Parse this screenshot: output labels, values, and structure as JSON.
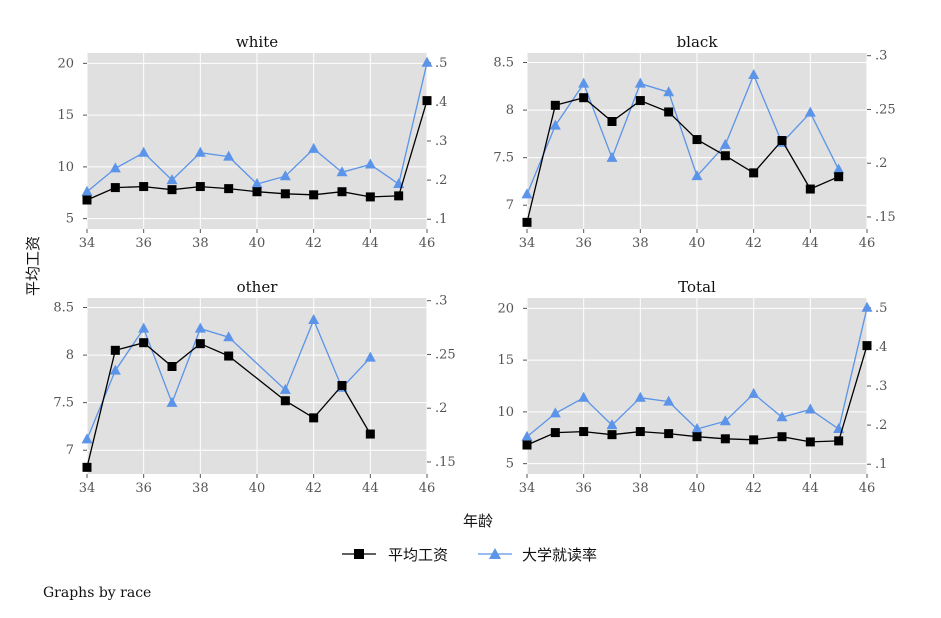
{
  "colors": {
    "wage": "#000000",
    "college": "#5b94e8",
    "plot_bg": "#e0e0e0",
    "grid": "#ffffff"
  },
  "figure": {
    "ylabel": "平均工资",
    "xlabel": "年龄",
    "note": "Graphs by race",
    "legend": [
      {
        "key": "wage",
        "label": "平均工资",
        "marker": "square",
        "color": "#000000"
      },
      {
        "key": "college",
        "label": "大学就读率",
        "marker": "triangle",
        "color": "#5b94e8"
      }
    ]
  },
  "chart_data": [
    {
      "type": "line",
      "title": "white",
      "xlim": [
        34,
        46
      ],
      "xticks": [
        34,
        36,
        38,
        40,
        42,
        44,
        46
      ],
      "ylim_left": [
        4,
        21
      ],
      "yticks_left": [
        5,
        10,
        15,
        20
      ],
      "ytick_labels_left": [
        "5",
        "10",
        "15",
        "20"
      ],
      "ylim_right": [
        0.075,
        0.525
      ],
      "yticks_right": [
        0.1,
        0.2,
        0.3,
        0.4,
        0.5
      ],
      "ytick_labels_right": [
        ".1",
        ".2",
        ".3",
        ".4",
        ".5"
      ],
      "series": [
        {
          "name": "平均工资",
          "axis": "left",
          "x": [
            34,
            35,
            36,
            37,
            38,
            39,
            40,
            41,
            42,
            43,
            44,
            45,
            46
          ],
          "y": [
            6.8,
            8.0,
            8.1,
            7.8,
            8.1,
            7.9,
            7.6,
            7.4,
            7.3,
            7.6,
            7.1,
            7.2,
            16.4
          ]
        },
        {
          "name": "大学就读率",
          "axis": "right",
          "x": [
            34,
            35,
            36,
            37,
            38,
            39,
            40,
            41,
            42,
            43,
            44,
            45,
            46
          ],
          "y": [
            0.17,
            0.23,
            0.27,
            0.2,
            0.27,
            0.26,
            0.19,
            0.21,
            0.28,
            0.22,
            0.24,
            0.19,
            0.5
          ]
        }
      ]
    },
    {
      "type": "line",
      "title": "black",
      "xlim": [
        34,
        46
      ],
      "xticks": [
        34,
        36,
        38,
        40,
        42,
        44,
        46
      ],
      "ylim_left": [
        6.75,
        8.6
      ],
      "yticks_left": [
        7,
        7.5,
        8,
        8.5
      ],
      "ytick_labels_left": [
        "7",
        "7.5",
        "8",
        "8.5"
      ],
      "ylim_right": [
        0.1388,
        0.3025
      ],
      "yticks_right": [
        0.15,
        0.2,
        0.25,
        0.3
      ],
      "ytick_labels_right": [
        ".15",
        ".2",
        ".25",
        ".3"
      ],
      "series": [
        {
          "name": "平均工资",
          "axis": "left",
          "x": [
            34,
            35,
            36,
            37,
            38,
            39,
            40,
            41,
            42,
            43,
            44,
            45
          ],
          "y": [
            6.82,
            8.05,
            8.13,
            7.88,
            8.1,
            7.98,
            7.69,
            7.52,
            7.34,
            7.68,
            7.17,
            7.3
          ]
        },
        {
          "name": "大学就读率",
          "axis": "right",
          "x": [
            34,
            35,
            36,
            37,
            38,
            39,
            40,
            41,
            42,
            43,
            44,
            45
          ],
          "y": [
            0.171,
            0.235,
            0.274,
            0.205,
            0.274,
            0.266,
            0.188,
            0.217,
            0.282,
            0.219,
            0.247,
            0.194
          ]
        }
      ]
    },
    {
      "type": "line",
      "title": "other",
      "xlim": [
        34,
        46
      ],
      "xticks": [
        34,
        36,
        38,
        40,
        42,
        44,
        46
      ],
      "ylim_left": [
        6.75,
        8.6
      ],
      "yticks_left": [
        7,
        7.5,
        8,
        8.5
      ],
      "ytick_labels_left": [
        "7",
        "7.5",
        "8",
        "8.5"
      ],
      "ylim_right": [
        0.1388,
        0.3025
      ],
      "yticks_right": [
        0.15,
        0.2,
        0.25,
        0.3
      ],
      "ytick_labels_right": [
        ".15",
        ".2",
        ".25",
        ".3"
      ],
      "series": [
        {
          "name": "平均工资",
          "axis": "left",
          "x": [
            34,
            35,
            36,
            37,
            38,
            39,
            41,
            42,
            43,
            44
          ],
          "y": [
            6.82,
            8.05,
            8.13,
            7.88,
            8.12,
            7.99,
            7.52,
            7.34,
            7.68,
            7.17
          ]
        },
        {
          "name": "大学就读率",
          "axis": "right",
          "x": [
            34,
            35,
            36,
            37,
            38,
            39,
            41,
            42,
            43,
            44
          ],
          "y": [
            0.171,
            0.235,
            0.274,
            0.205,
            0.274,
            0.266,
            0.217,
            0.282,
            0.219,
            0.247
          ]
        }
      ]
    },
    {
      "type": "line",
      "title": "Total",
      "xlim": [
        34,
        46
      ],
      "xticks": [
        34,
        36,
        38,
        40,
        42,
        44,
        46
      ],
      "ylim_left": [
        4,
        21
      ],
      "yticks_left": [
        5,
        10,
        15,
        20
      ],
      "ytick_labels_left": [
        "5",
        "10",
        "15",
        "20"
      ],
      "ylim_right": [
        0.075,
        0.525
      ],
      "yticks_right": [
        0.1,
        0.2,
        0.3,
        0.4,
        0.5
      ],
      "ytick_labels_right": [
        ".1",
        ".2",
        ".3",
        ".4",
        ".5"
      ],
      "series": [
        {
          "name": "平均工资",
          "axis": "left",
          "x": [
            34,
            35,
            36,
            37,
            38,
            39,
            40,
            41,
            42,
            43,
            44,
            45,
            46
          ],
          "y": [
            6.8,
            8.0,
            8.1,
            7.8,
            8.1,
            7.9,
            7.6,
            7.4,
            7.3,
            7.6,
            7.1,
            7.2,
            16.4
          ]
        },
        {
          "name": "大学就读率",
          "axis": "right",
          "x": [
            34,
            35,
            36,
            37,
            38,
            39,
            40,
            41,
            42,
            43,
            44,
            45,
            46
          ],
          "y": [
            0.17,
            0.23,
            0.27,
            0.2,
            0.27,
            0.26,
            0.19,
            0.21,
            0.28,
            0.22,
            0.24,
            0.19,
            0.5
          ]
        }
      ]
    }
  ]
}
